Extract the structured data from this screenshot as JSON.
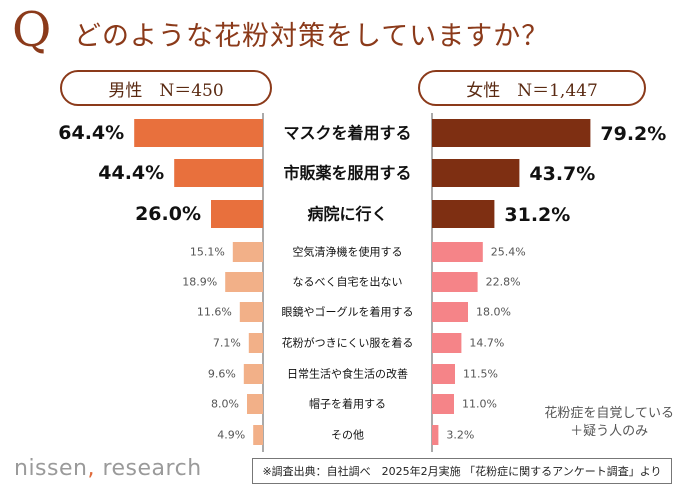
{
  "title": {
    "q": "Q",
    "text": "どのような花粉対策をしていますか？"
  },
  "legend": {
    "male": "男性　N＝450",
    "female": "女性　N＝1,447"
  },
  "colors": {
    "male_main": "#e8703d",
    "female_main": "#7e2f12",
    "male_light": "#f2b088",
    "female_light": "#f58488",
    "divider": "#555555"
  },
  "chart_data": {
    "type": "bar",
    "title": "どのような花粉対策をしていますか？",
    "categories": [
      "マスクを着用する",
      "市販薬を服用する",
      "病院に行く",
      "空気清浄機を使用する",
      "なるべく自宅を出ない",
      "眼鏡やゴーグルを着用する",
      "花粉がつきにくい服を着る",
      "日常生活や食生活の改善",
      "帽子を着用する",
      "その他"
    ],
    "series": [
      {
        "name": "男性　N＝450",
        "values": [
          64.4,
          44.4,
          26.0,
          15.1,
          18.9,
          11.6,
          7.1,
          9.6,
          8.0,
          4.9
        ],
        "labels": [
          "64.4%",
          "44.4%",
          "26.0%",
          "15.1%",
          "18.9%",
          "11.6%",
          "7.1%",
          "9.6%",
          "8.0%",
          "4.9%"
        ]
      },
      {
        "name": "女性　N＝1,447",
        "values": [
          79.2,
          43.7,
          31.2,
          25.4,
          22.8,
          18.0,
          14.7,
          11.5,
          11.0,
          3.2
        ],
        "labels": [
          "79.2%",
          "43.7%",
          "31.2%",
          "25.4%",
          "22.8%",
          "18.0%",
          "14.7%",
          "11.5%",
          "11.0%",
          "3.2%"
        ]
      }
    ],
    "xlim": [
      0,
      100
    ],
    "xlabel": "",
    "ylabel": ""
  },
  "note": {
    "line1": "花粉症を自覚している",
    "line2": "＋疑う人のみ"
  },
  "brand": {
    "name": "nissen",
    "comma": ",",
    "suffix": " research"
  },
  "source": "※調査出典：自社調べ　2025年2月実施 「花粉症に関するアンケート調査」より"
}
